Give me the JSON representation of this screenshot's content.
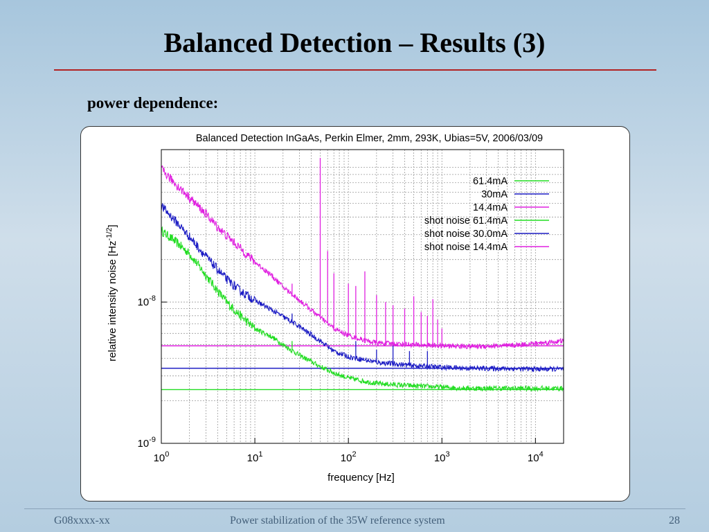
{
  "slide": {
    "title": "Balanced Detection – Results (3)",
    "subtitle": "power dependence:"
  },
  "footer": {
    "left": "G08xxxx-xx",
    "center": "Power stabilization of the 35W reference system",
    "page": "28"
  },
  "chart_data": {
    "type": "line",
    "title": "Balanced Detection InGaAs, Perkin Elmer, 2mm, 293K, Ubias=5V, 2006/03/09",
    "xlabel": "frequency [Hz]",
    "ylabel": "relative intensity noise [Hz",
    "ylabel_exp": "-1/2",
    "ylabel_close": "]",
    "xscale": "log",
    "yscale": "log",
    "xlim": [
      1,
      20000
    ],
    "ylim": [
      1e-09,
      1.2e-07
    ],
    "grid": true,
    "legend_position": "top-right",
    "x_ticks": [
      {
        "base": "10",
        "exp": "0"
      },
      {
        "base": "10",
        "exp": "1"
      },
      {
        "base": "10",
        "exp": "2"
      },
      {
        "base": "10",
        "exp": "3"
      },
      {
        "base": "10",
        "exp": "4"
      }
    ],
    "y_ticks": [
      {
        "base": "10",
        "exp": "-9"
      },
      {
        "base": "10",
        "exp": "-8"
      }
    ],
    "series": [
      {
        "name": "61.4mA",
        "color": "#22dd22",
        "style": "noisy",
        "x": [
          1,
          1.5,
          2,
          3,
          4,
          5,
          7,
          10,
          15,
          20,
          30,
          50,
          70,
          100,
          150,
          200,
          500,
          1000,
          2000,
          5000,
          10000,
          20000
        ],
        "y": [
          3.2e-08,
          2.6e-08,
          2.2e-08,
          1.55e-08,
          1.2e-08,
          1e-08,
          8e-09,
          6.5e-09,
          5.7e-09,
          5e-09,
          4.2e-09,
          3.5e-09,
          3.15e-09,
          2.9e-09,
          2.75e-09,
          2.65e-09,
          2.55e-09,
          2.5e-09,
          2.45e-09,
          2.45e-09,
          2.45e-09,
          2.45e-09
        ],
        "spikes": [
          {
            "x": 15,
            "y": 5.5e-09
          },
          {
            "x": 20,
            "y": 4.8e-09
          },
          {
            "x": 25,
            "y": 5.3e-09
          }
        ]
      },
      {
        "name": "30mA",
        "color": "#1c1cc4",
        "style": "noisy",
        "x": [
          1,
          1.5,
          2,
          3,
          4,
          5,
          7,
          10,
          15,
          20,
          30,
          50,
          70,
          100,
          150,
          200,
          500,
          1000,
          2000,
          5000,
          10000,
          20000
        ],
        "y": [
          4.8e-08,
          3.6e-08,
          2.9e-08,
          2.1e-08,
          1.7e-08,
          1.45e-08,
          1.2e-08,
          1.03e-08,
          8.8e-09,
          7.9e-09,
          6.7e-09,
          5.3e-09,
          4.5e-09,
          4.1e-09,
          3.9e-09,
          3.75e-09,
          3.55e-09,
          3.45e-09,
          3.4e-09,
          3.38e-09,
          3.35e-09,
          3.35e-09
        ],
        "spikes": [
          {
            "x": 25,
            "y": 8.3e-09
          },
          {
            "x": 120,
            "y": 5.3e-09
          },
          {
            "x": 200,
            "y": 4.6e-09
          },
          {
            "x": 300,
            "y": 5e-09
          },
          {
            "x": 450,
            "y": 4.5e-09
          },
          {
            "x": 700,
            "y": 4.5e-09
          }
        ]
      },
      {
        "name": "14.4mA",
        "color": "#e020e0",
        "style": "noisy",
        "x": [
          1,
          1.5,
          2,
          3,
          4,
          5,
          7,
          10,
          15,
          20,
          30,
          50,
          70,
          100,
          150,
          200,
          500,
          1000,
          2000,
          5000,
          10000,
          20000
        ],
        "y": [
          8.7e-08,
          6.6e-08,
          5.5e-08,
          4.2e-08,
          3.4e-08,
          2.95e-08,
          2.4e-08,
          1.92e-08,
          1.55e-08,
          1.28e-08,
          1.03e-08,
          7.8e-09,
          6.5e-09,
          5.8e-09,
          5.35e-09,
          5.15e-09,
          5e-09,
          4.9e-09,
          4.85e-09,
          4.9e-09,
          5.1e-09,
          5.3e-09
        ],
        "spikes": [
          {
            "x": 25,
            "y": 1.35e-08
          },
          {
            "x": 50,
            "y": 1.05e-07
          },
          {
            "x": 60,
            "y": 2.3e-08
          },
          {
            "x": 70,
            "y": 1.6e-08
          },
          {
            "x": 100,
            "y": 1.35e-08
          },
          {
            "x": 120,
            "y": 1.3e-08
          },
          {
            "x": 150,
            "y": 1.65e-08
          },
          {
            "x": 200,
            "y": 1.12e-08
          },
          {
            "x": 250,
            "y": 1e-08
          },
          {
            "x": 300,
            "y": 9.5e-09
          },
          {
            "x": 400,
            "y": 9e-09
          },
          {
            "x": 500,
            "y": 1.1e-08
          },
          {
            "x": 600,
            "y": 8.5e-09
          },
          {
            "x": 700,
            "y": 8e-09
          },
          {
            "x": 800,
            "y": 1.05e-08
          },
          {
            "x": 900,
            "y": 7.5e-09
          },
          {
            "x": 1000,
            "y": 6.5e-09
          }
        ]
      },
      {
        "name": "shot noise 61.4mA",
        "color": "#22dd22",
        "style": "flat",
        "x": [
          1,
          20000
        ],
        "y": [
          2.4e-09,
          2.4e-09
        ]
      },
      {
        "name": "shot noise 30.0mA",
        "color": "#1c1cc4",
        "style": "flat",
        "x": [
          1,
          20000
        ],
        "y": [
          3.4e-09,
          3.4e-09
        ]
      },
      {
        "name": "shot noise 14.4mA",
        "color": "#e020e0",
        "style": "flat",
        "x": [
          1,
          20000
        ],
        "y": [
          4.9e-09,
          4.9e-09
        ]
      }
    ]
  }
}
